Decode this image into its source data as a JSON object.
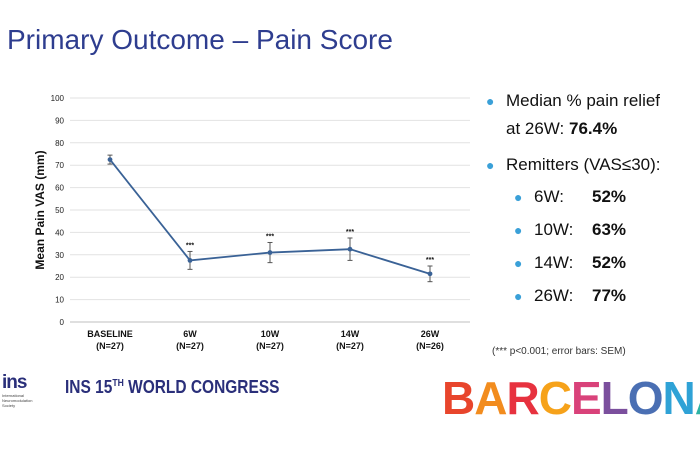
{
  "slide": {
    "title": "Primary Outcome – Pain Score",
    "bullets": {
      "b1_line1": "Median % pain relief",
      "b1_line2_prefix": "at 26W: ",
      "b1_line2_value": "76.4%",
      "b2": "Remitters (VAS≤30):",
      "remitters": [
        {
          "label": "6W:",
          "value": "52%"
        },
        {
          "label": "10W:",
          "value": "63%"
        },
        {
          "label": "14W:",
          "value": "52%"
        },
        {
          "label": "26W:",
          "value": "77%"
        }
      ]
    },
    "footnote": "(*** p<0.001; error bars: SEM)",
    "footer": {
      "logo_text": "ins",
      "logo_sub": "International Neuromodulation Society",
      "congress_pre": "INS 15",
      "congress_sup": "TH",
      "congress_post": " WORLD CONGRESS",
      "city": "BARCELONA",
      "city_colors": [
        "#e8452c",
        "#f28c1e",
        "#e7323f",
        "#f6a21a",
        "#d9427a",
        "#7b4f9d",
        "#4a6fb3",
        "#2fa2d6",
        "#2fb3a4"
      ]
    }
  },
  "chart_data": {
    "type": "line",
    "ylabel": "Mean Pain VAS (mm)",
    "xlabel": "",
    "ylim": [
      0,
      100
    ],
    "yticks": [
      0,
      10,
      20,
      30,
      40,
      50,
      60,
      70,
      80,
      90,
      100
    ],
    "categories": [
      "BASELINE",
      "6W",
      "10W",
      "14W",
      "26W"
    ],
    "category_n": [
      "(N=27)",
      "(N=27)",
      "(N=27)",
      "(N=27)",
      "(N=26)"
    ],
    "grid": true,
    "series": [
      {
        "values": [
          72.5,
          27.5,
          31,
          32.5,
          21.5
        ],
        "sem": [
          2,
          4,
          4.5,
          5,
          3.5
        ],
        "annotations": [
          "",
          "***",
          "***",
          "***",
          "***"
        ],
        "color": "#3a6296"
      }
    ]
  }
}
